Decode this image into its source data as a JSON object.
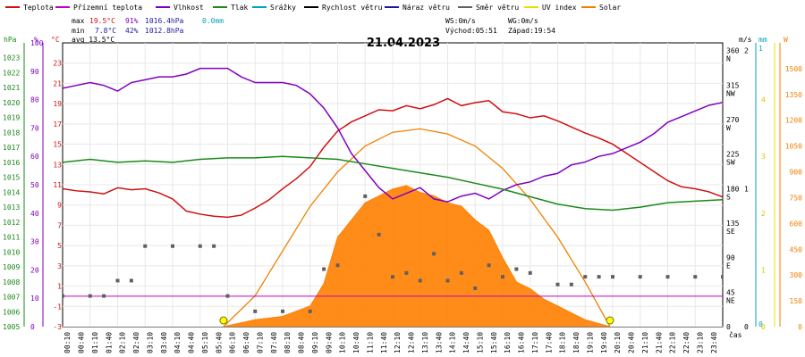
{
  "legend": [
    {
      "label": "Teplota",
      "color": "#d01010"
    },
    {
      "label": "Přízemní teplota",
      "color": "#c000c0"
    },
    {
      "label": "Vlhkost",
      "color": "#8000c0"
    },
    {
      "label": "Tlak",
      "color": "#1a8a1a"
    },
    {
      "label": "Srážky",
      "color": "#00a0c0"
    },
    {
      "label": "Rychlost větru",
      "color": "#000000"
    },
    {
      "label": "Náraz větru",
      "color": "#1a1aa0"
    },
    {
      "label": "Směr větru",
      "color": "#606060"
    },
    {
      "label": "UV index",
      "color": "#e8e000"
    },
    {
      "label": "Solar",
      "color": "#f08000"
    }
  ],
  "stats": {
    "max": {
      "label": "max",
      "temp": "19.5°C",
      "hum": "91%",
      "press": "1016.4hPa",
      "rain": "0.0mm"
    },
    "min": {
      "label": "min",
      "temp": "7.8°C",
      "hum": "42%",
      "press": "1012.8hPa"
    },
    "avg": "avg 13.5°C",
    "ws": "WS:0m/s",
    "wg": "WG:0m/s",
    "sunrise": "Východ:05:51",
    "sunset": "Západ:19:54"
  },
  "axes": {
    "units": {
      "hpa": "hPa",
      "pct": "%",
      "c": "°C",
      "ms": "m/s",
      "mm": "mm",
      "w": "W"
    },
    "pressure_ticks": [
      "1023",
      "1022",
      "1021",
      "1020",
      "1019",
      "1018",
      "1017",
      "1016",
      "1015",
      "1014",
      "1013",
      "1012",
      "1011",
      "1010",
      "1009",
      "1008",
      "1007",
      "1006",
      "1005"
    ],
    "humidity_ticks": [
      "100",
      "90",
      "80",
      "70",
      "60",
      "50",
      "40",
      "30",
      "20",
      "10",
      "0"
    ],
    "temp_ticks": [
      "23",
      "21",
      "19",
      "17",
      "15",
      "13",
      "11",
      "9",
      "7",
      "5",
      "3",
      "1",
      "-1",
      "-3"
    ],
    "dir_ticks": [
      {
        "deg": 360,
        "label": "360",
        "sub": "N"
      },
      {
        "deg": 315,
        "label": "315",
        "sub": "NW"
      },
      {
        "deg": 270,
        "label": "270",
        "sub": "W"
      },
      {
        "deg": 225,
        "label": "225",
        "sub": "SW"
      },
      {
        "deg": 180,
        "label": "180",
        "sub": "S"
      },
      {
        "deg": 135,
        "label": "135",
        "sub": "SE"
      },
      {
        "deg": 90,
        "label": "90",
        "sub": "E"
      },
      {
        "deg": 45,
        "label": "45",
        "sub": "NE"
      },
      {
        "deg": 0,
        "label": "0",
        "sub": ""
      }
    ],
    "ms_ticks": [
      "2",
      "1",
      "0"
    ],
    "mm_ticks": [
      "1",
      "0"
    ],
    "uv_ticks": [
      "4",
      "3",
      "2",
      "1",
      "0"
    ],
    "solar_ticks": [
      "1500",
      "1350",
      "1200",
      "1050",
      "900",
      "750",
      "600",
      "450",
      "300",
      "150",
      "0"
    ]
  },
  "chart_data": {
    "type": "line",
    "title": "21.04.2023",
    "xlabel": "čas",
    "x_ticks": [
      "00:10",
      "00:40",
      "01:10",
      "01:40",
      "02:10",
      "02:40",
      "03:10",
      "03:40",
      "04:10",
      "04:40",
      "05:10",
      "05:40",
      "06:10",
      "06:40",
      "07:10",
      "07:40",
      "08:10",
      "08:40",
      "09:10",
      "09:40",
      "10:10",
      "10:40",
      "11:10",
      "11:40",
      "12:10",
      "12:40",
      "13:10",
      "13:40",
      "14:10",
      "14:40",
      "15:10",
      "15:40",
      "16:10",
      "16:40",
      "17:10",
      "17:40",
      "18:10",
      "18:40",
      "19:10",
      "19:40",
      "20:10",
      "20:40",
      "21:10",
      "21:40",
      "22:10",
      "22:40",
      "23:10",
      "23:40"
    ],
    "ranges": {
      "temperature_c": [
        -3,
        25
      ],
      "humidity_pct": [
        0,
        100
      ],
      "pressure_hpa": [
        1005,
        1024
      ],
      "wind_dir_deg": [
        0,
        370
      ],
      "solar_wm2": [
        0,
        1650
      ]
    },
    "series": [
      {
        "name": "Teplota",
        "unit": "°C",
        "color": "#d01010",
        "points": [
          [
            0,
            10.6
          ],
          [
            0.5,
            10.4
          ],
          [
            1,
            10.3
          ],
          [
            1.5,
            10.1
          ],
          [
            2,
            10.7
          ],
          [
            2.5,
            10.5
          ],
          [
            3,
            10.6
          ],
          [
            3.5,
            10.2
          ],
          [
            4,
            9.6
          ],
          [
            4.5,
            8.4
          ],
          [
            5,
            8.1
          ],
          [
            5.5,
            7.9
          ],
          [
            6,
            7.8
          ],
          [
            6.5,
            8.0
          ],
          [
            7,
            8.7
          ],
          [
            7.5,
            9.5
          ],
          [
            8,
            10.6
          ],
          [
            8.5,
            11.6
          ],
          [
            9,
            12.8
          ],
          [
            9.5,
            14.7
          ],
          [
            10,
            16.3
          ],
          [
            10.5,
            17.2
          ],
          [
            11,
            17.8
          ],
          [
            11.5,
            18.4
          ],
          [
            12,
            18.3
          ],
          [
            12.5,
            18.8
          ],
          [
            13,
            18.5
          ],
          [
            13.5,
            18.9
          ],
          [
            14,
            19.5
          ],
          [
            14.5,
            18.8
          ],
          [
            15,
            19.1
          ],
          [
            15.5,
            19.3
          ],
          [
            16,
            18.2
          ],
          [
            16.5,
            18.0
          ],
          [
            17,
            17.6
          ],
          [
            17.5,
            17.8
          ],
          [
            18,
            17.3
          ],
          [
            18.5,
            16.7
          ],
          [
            19,
            16.1
          ],
          [
            19.5,
            15.6
          ],
          [
            20,
            15.0
          ],
          [
            20.5,
            14.1
          ],
          [
            21,
            13.2
          ],
          [
            21.5,
            12.3
          ],
          [
            22,
            11.4
          ],
          [
            22.5,
            10.8
          ],
          [
            23,
            10.6
          ],
          [
            23.5,
            10.3
          ],
          [
            24,
            9.8
          ]
        ]
      },
      {
        "name": "Vlhkost",
        "unit": "%",
        "color": "#8000c0",
        "points": [
          [
            0,
            84
          ],
          [
            0.5,
            85
          ],
          [
            1,
            86
          ],
          [
            1.5,
            85
          ],
          [
            2,
            83
          ],
          [
            2.5,
            86
          ],
          [
            3,
            87
          ],
          [
            3.5,
            88
          ],
          [
            4,
            88
          ],
          [
            4.5,
            89
          ],
          [
            5,
            91
          ],
          [
            5.5,
            91
          ],
          [
            6,
            91
          ],
          [
            6.5,
            88
          ],
          [
            7,
            86
          ],
          [
            7.5,
            86
          ],
          [
            8,
            86
          ],
          [
            8.5,
            85
          ],
          [
            9,
            82
          ],
          [
            9.5,
            77
          ],
          [
            10,
            70
          ],
          [
            10.5,
            61
          ],
          [
            11,
            55
          ],
          [
            11.5,
            49
          ],
          [
            12,
            45
          ],
          [
            12.5,
            47
          ],
          [
            13,
            49
          ],
          [
            13.5,
            45
          ],
          [
            14,
            44
          ],
          [
            14.5,
            46
          ],
          [
            15,
            47
          ],
          [
            15.5,
            45
          ],
          [
            16,
            48
          ],
          [
            16.5,
            50
          ],
          [
            17,
            51
          ],
          [
            17.5,
            53
          ],
          [
            18,
            54
          ],
          [
            18.5,
            57
          ],
          [
            19,
            58
          ],
          [
            19.5,
            60
          ],
          [
            20,
            61
          ],
          [
            20.5,
            63
          ],
          [
            21,
            65
          ],
          [
            21.5,
            68
          ],
          [
            22,
            72
          ],
          [
            22.5,
            74
          ],
          [
            23,
            76
          ],
          [
            23.5,
            78
          ],
          [
            24,
            79
          ]
        ]
      },
      {
        "name": "Tlak",
        "unit": "hPa",
        "color": "#1a8a1a",
        "points": [
          [
            0,
            1016.0
          ],
          [
            1,
            1016.2
          ],
          [
            2,
            1016.0
          ],
          [
            3,
            1016.1
          ],
          [
            4,
            1016.0
          ],
          [
            5,
            1016.2
          ],
          [
            6,
            1016.3
          ],
          [
            7,
            1016.3
          ],
          [
            8,
            1016.4
          ],
          [
            9,
            1016.3
          ],
          [
            10,
            1016.2
          ],
          [
            11,
            1015.9
          ],
          [
            12,
            1015.6
          ],
          [
            13,
            1015.3
          ],
          [
            14,
            1015.0
          ],
          [
            15,
            1014.6
          ],
          [
            16,
            1014.2
          ],
          [
            17,
            1013.7
          ],
          [
            18,
            1013.2
          ],
          [
            19,
            1012.9
          ],
          [
            20,
            1012.8
          ],
          [
            21,
            1013.0
          ],
          [
            22,
            1013.3
          ],
          [
            23,
            1013.4
          ],
          [
            24,
            1013.5
          ]
        ]
      },
      {
        "name": "Směr větru",
        "unit": "°",
        "color": "#606060",
        "points": [
          [
            0,
            40
          ],
          [
            1,
            40
          ],
          [
            1.5,
            40
          ],
          [
            2,
            60
          ],
          [
            2.5,
            60
          ],
          [
            3,
            105
          ],
          [
            4,
            105
          ],
          [
            5,
            105
          ],
          [
            5.5,
            105
          ],
          [
            6,
            40
          ],
          [
            7,
            20
          ],
          [
            8,
            20
          ],
          [
            9,
            20
          ],
          [
            9.5,
            75
          ],
          [
            10,
            80
          ],
          [
            11,
            170
          ],
          [
            11.5,
            120
          ],
          [
            12,
            65
          ],
          [
            12.5,
            70
          ],
          [
            13,
            60
          ],
          [
            13.5,
            95
          ],
          [
            14,
            60
          ],
          [
            14.5,
            70
          ],
          [
            15,
            50
          ],
          [
            15.5,
            80
          ],
          [
            16,
            65
          ],
          [
            16.5,
            75
          ],
          [
            17,
            70
          ],
          [
            18,
            55
          ],
          [
            18.5,
            55
          ],
          [
            19,
            65
          ],
          [
            19.5,
            65
          ],
          [
            20,
            65
          ],
          [
            21,
            65
          ],
          [
            22,
            65
          ],
          [
            23,
            65
          ],
          [
            24,
            65
          ]
        ]
      }
    ],
    "solar_curve_points": [
      [
        5.85,
        0
      ],
      [
        7,
        180
      ],
      [
        8,
        440
      ],
      [
        9,
        700
      ],
      [
        10,
        900
      ],
      [
        11,
        1050
      ],
      [
        12,
        1130
      ],
      [
        13,
        1150
      ],
      [
        14,
        1120
      ],
      [
        15,
        1050
      ],
      [
        16,
        920
      ],
      [
        17,
        740
      ],
      [
        18,
        520
      ],
      [
        19,
        260
      ],
      [
        19.9,
        0
      ]
    ],
    "solar_points": [
      [
        5.85,
        0
      ],
      [
        7,
        40
      ],
      [
        8,
        60
      ],
      [
        9,
        120
      ],
      [
        9.5,
        250
      ],
      [
        10,
        520
      ],
      [
        11,
        720
      ],
      [
        12,
        800
      ],
      [
        12.5,
        820
      ],
      [
        13,
        780
      ],
      [
        13.5,
        760
      ],
      [
        14,
        720
      ],
      [
        14.5,
        700
      ],
      [
        15,
        620
      ],
      [
        15.5,
        560
      ],
      [
        16,
        400
      ],
      [
        16.5,
        260
      ],
      [
        17,
        220
      ],
      [
        17.5,
        160
      ],
      [
        18,
        120
      ],
      [
        19,
        40
      ],
      [
        19.9,
        0
      ]
    ],
    "sun_markers": [
      5.85,
      19.9
    ]
  }
}
